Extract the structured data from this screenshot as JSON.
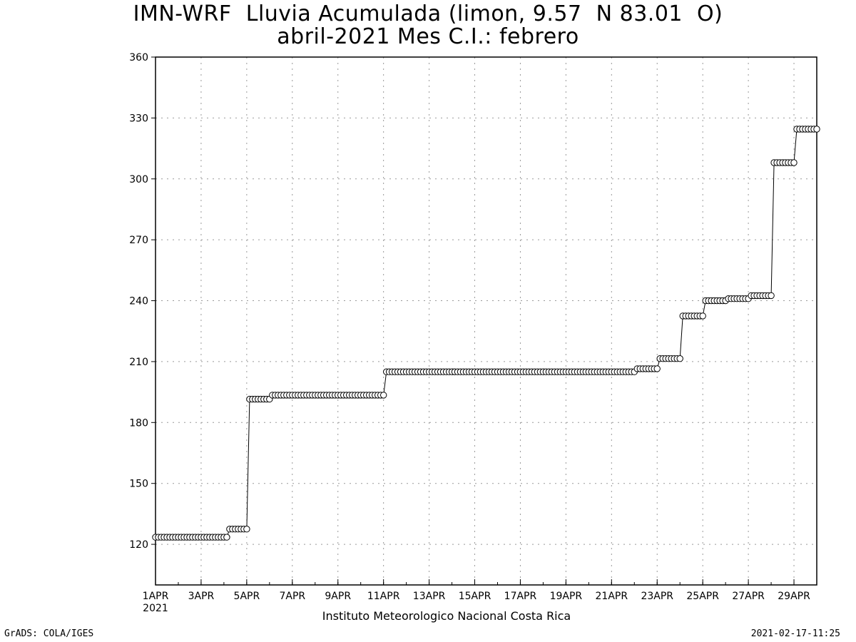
{
  "chart_data": {
    "type": "line",
    "title": "IMN-WRF  Lluvia Acumulada (limon, 9.57  N 83.01  O)",
    "subtitle": "abril-2021 Mes C.I.: febrero",
    "xlabel": "",
    "ylabel": "",
    "x_tick_labels": [
      "1APR",
      "3APR",
      "5APR",
      "7APR",
      "9APR",
      "11APR",
      "13APR",
      "15APR",
      "17APR",
      "19APR",
      "21APR",
      "23APR",
      "25APR",
      "27APR",
      "29APR"
    ],
    "x_tick_year": "2021",
    "y_tick_labels": [
      "120",
      "150",
      "180",
      "210",
      "240",
      "270",
      "300",
      "330",
      "360"
    ],
    "ylim": [
      100,
      360
    ],
    "xlim": [
      "2021-04-01",
      "2021-04-30"
    ],
    "grid": true,
    "marker": "open-circle",
    "steps": [
      {
        "from": "2021-04-01 00:00",
        "to": "2021-04-04 03:00",
        "value": 123.5
      },
      {
        "from": "2021-04-04 06:00",
        "to": "2021-04-05 00:00",
        "value": 127.5
      },
      {
        "from": "2021-04-05 03:00",
        "to": "2021-04-06 00:00",
        "value": 191.5
      },
      {
        "from": "2021-04-06 03:00",
        "to": "2021-04-11 00:00",
        "value": 193.5
      },
      {
        "from": "2021-04-11 03:00",
        "to": "2021-04-22 00:00",
        "value": 205.0
      },
      {
        "from": "2021-04-22 03:00",
        "to": "2021-04-23 00:00",
        "value": 206.5
      },
      {
        "from": "2021-04-23 03:00",
        "to": "2021-04-24 00:00",
        "value": 211.5
      },
      {
        "from": "2021-04-24 03:00",
        "to": "2021-04-25 00:00",
        "value": 232.5
      },
      {
        "from": "2021-04-25 03:00",
        "to": "2021-04-26 00:00",
        "value": 240.0
      },
      {
        "from": "2021-04-26 03:00",
        "to": "2021-04-27 00:00",
        "value": 241.0
      },
      {
        "from": "2021-04-27 03:00",
        "to": "2021-04-28 00:00",
        "value": 242.5
      },
      {
        "from": "2021-04-28 03:00",
        "to": "2021-04-29 00:00",
        "value": 308.0
      },
      {
        "from": "2021-04-29 03:00",
        "to": "2021-04-30 00:00",
        "value": 324.5
      }
    ]
  },
  "footer": {
    "credit": "Instituto Meteorologico Nacional Costa Rica",
    "software": "GrADS: COLA/IGES",
    "timestamp": "2021-02-17-11:25"
  }
}
